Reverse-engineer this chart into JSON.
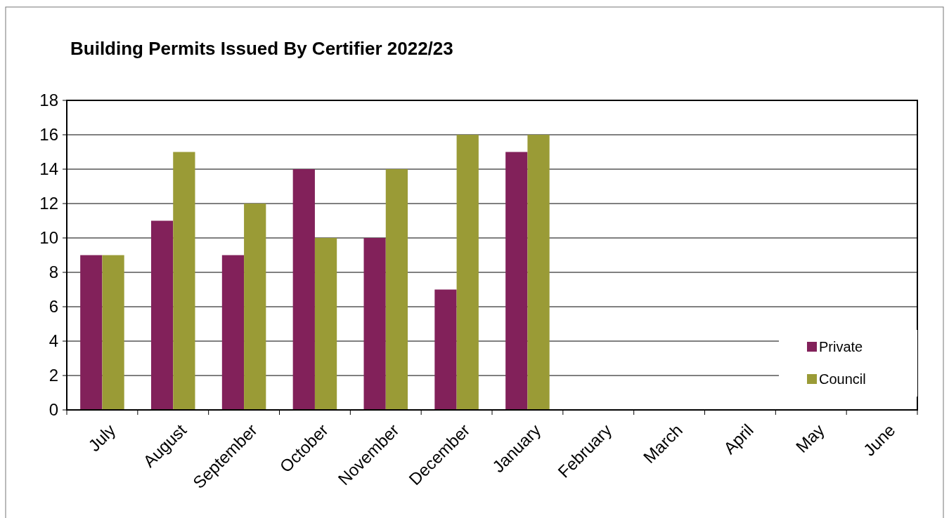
{
  "chart_data": {
    "type": "bar",
    "title": "Building Permits Issued By Certifier 2022/23",
    "categories": [
      "July",
      "August",
      "September",
      "October",
      "November",
      "December",
      "January",
      "February",
      "March",
      "April",
      "May",
      "June"
    ],
    "series": [
      {
        "name": "Private",
        "color": "#82215a",
        "values": [
          9,
          11,
          9,
          14,
          10,
          7,
          15,
          null,
          null,
          null,
          null,
          null
        ]
      },
      {
        "name": "Council",
        "color": "#9a9b36",
        "values": [
          9,
          15,
          12,
          10,
          14,
          16,
          16,
          null,
          null,
          null,
          null,
          null
        ]
      }
    ],
    "ylim": [
      0,
      18
    ],
    "yticks": [
      0,
      2,
      4,
      6,
      8,
      10,
      12,
      14,
      16,
      18
    ],
    "grid": "y",
    "legend": "bottom right"
  }
}
